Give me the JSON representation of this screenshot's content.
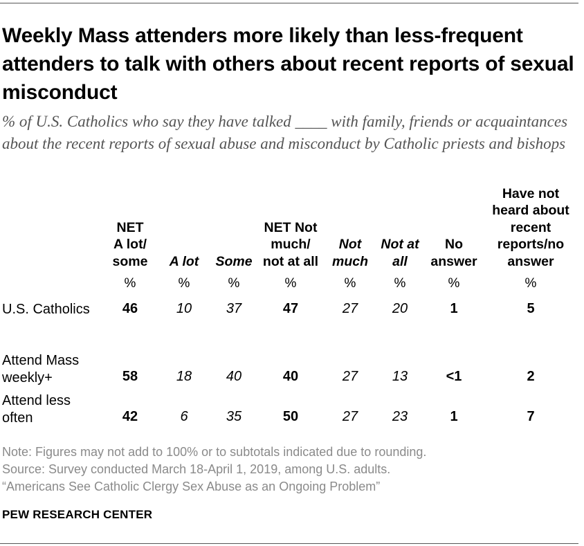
{
  "title": "Weekly Mass attenders more likely than less-frequent attenders to talk with others about recent reports of sexual misconduct",
  "subtitle": "% of U.S. Catholics who say they have talked ____ with family, friends or acquaintances about the recent reports of sexual abuse and misconduct by Catholic priests and bishops",
  "chart_data": {
    "type": "table",
    "columns": [
      {
        "key": "net_alot_some",
        "lines": [
          "NET",
          "A lot/",
          "some"
        ],
        "style": "bold"
      },
      {
        "key": "a_lot",
        "lines": [
          "A lot"
        ],
        "style": "italic"
      },
      {
        "key": "some",
        "lines": [
          "Some"
        ],
        "style": "italic"
      },
      {
        "key": "net_notmuch_notatall",
        "lines": [
          "NET Not",
          "much/",
          "not at all"
        ],
        "style": "bold"
      },
      {
        "key": "not_much",
        "lines": [
          "Not",
          "much"
        ],
        "style": "italic"
      },
      {
        "key": "not_at_all",
        "lines": [
          "Not at",
          "all"
        ],
        "style": "italic"
      },
      {
        "key": "no_answer",
        "lines": [
          "No",
          "answer"
        ],
        "style": "bold"
      },
      {
        "key": "not_heard",
        "lines": [
          "Have not",
          "heard about",
          "recent",
          "reports/no",
          "answer"
        ],
        "style": "bold"
      }
    ],
    "unit_row": [
      "%",
      "%",
      "%",
      "%",
      "%",
      "%",
      "%",
      "%"
    ],
    "rows": [
      {
        "label_lines": [
          "U.S. Catholics"
        ],
        "values": [
          "46",
          "10",
          "37",
          "47",
          "27",
          "20",
          "1",
          "5"
        ]
      },
      {
        "label_lines": [
          "Attend Mass",
          "weekly+"
        ],
        "values": [
          "58",
          "18",
          "40",
          "40",
          "27",
          "13",
          "<1",
          "2"
        ]
      },
      {
        "label_lines": [
          "Attend less",
          "often"
        ],
        "values": [
          "42",
          "6",
          "35",
          "50",
          "27",
          "23",
          "1",
          "7"
        ]
      }
    ]
  },
  "notes": [
    "Note: Figures may not add to 100% or to subtotals indicated due to rounding.",
    "Source: Survey conducted March 18-April 1, 2019, among U.S. adults.",
    "“Americans See Catholic Clergy Sex Abuse as an Ongoing Problem”"
  ],
  "brand": "PEW RESEARCH CENTER"
}
